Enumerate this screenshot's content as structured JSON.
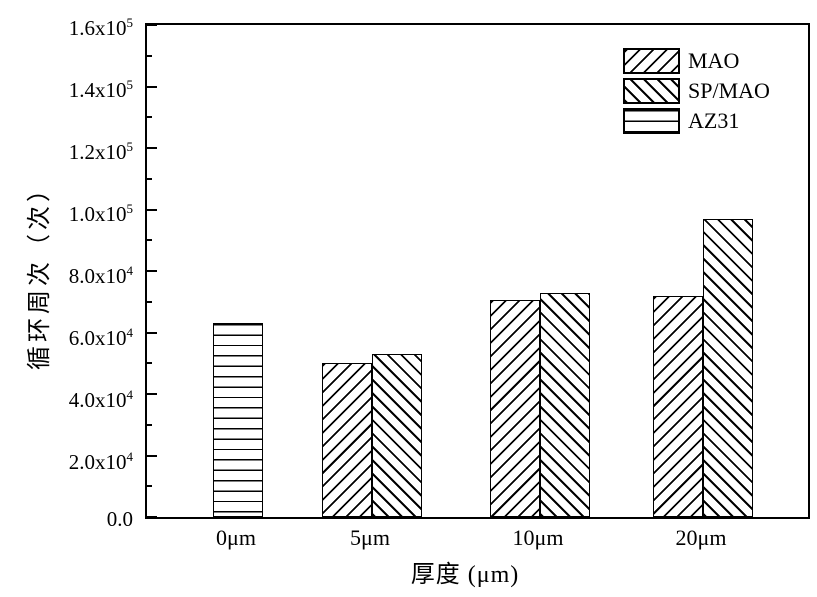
{
  "colors": {
    "foreground": "#000000",
    "background": "#ffffff"
  },
  "chart_data": {
    "type": "bar",
    "title": "",
    "xlabel": "厚度 (μm)",
    "ylabel": "循环周次（次）",
    "categories": [
      "0μm",
      "5μm",
      "10μm",
      "20μm"
    ],
    "series": [
      {
        "name": "MAO",
        "hatch": "diagonal-forward",
        "values": [
          null,
          50000,
          70500,
          72000
        ]
      },
      {
        "name": "SP/MAO",
        "hatch": "diagonal-backward",
        "values": [
          null,
          53000,
          73000,
          97000
        ]
      },
      {
        "name": "AZ31",
        "hatch": "horizontal",
        "values": [
          63000,
          null,
          null,
          null
        ]
      }
    ],
    "ylim": [
      0,
      160000
    ],
    "y_major_step": 20000,
    "y_minor_step": 10000,
    "y_tick_labels": [
      "0.0",
      "2.0x10^4",
      "4.0x10^4",
      "6.0x10^4",
      "8.0x10^4",
      "1.0x10^5",
      "1.2x10^5",
      "1.4x10^5",
      "1.6x10^5"
    ],
    "grid": false,
    "legend_position": "top-right",
    "legend": [
      "MAO",
      "SP/MAO",
      "AZ31"
    ]
  }
}
